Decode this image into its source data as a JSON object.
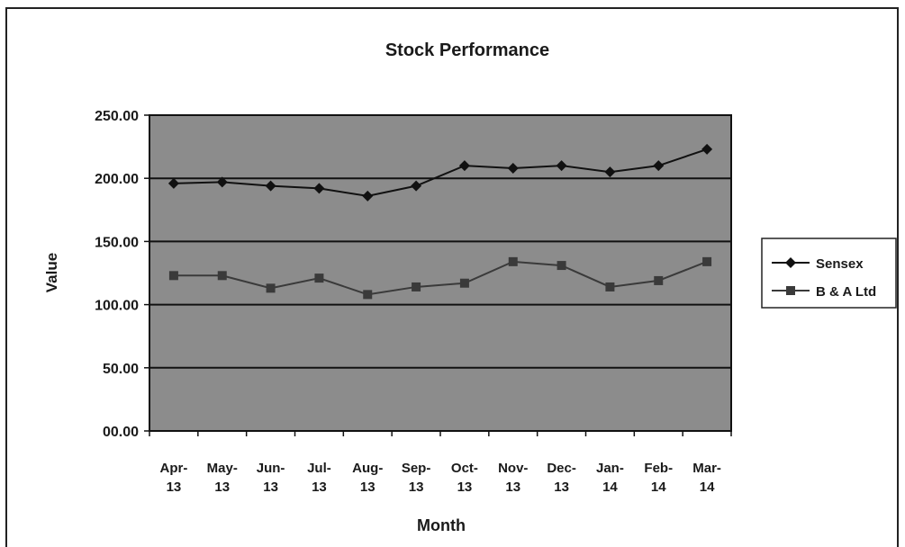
{
  "chart_data": {
    "type": "line",
    "title": "Stock Performance",
    "xlabel": "Month",
    "ylabel": "Value",
    "categories": [
      [
        "Apr-",
        "13"
      ],
      [
        "May-",
        "13"
      ],
      [
        "Jun-",
        "13"
      ],
      [
        "Jul-",
        "13"
      ],
      [
        "Aug-",
        "13"
      ],
      [
        "Sep-",
        "13"
      ],
      [
        "Oct-",
        "13"
      ],
      [
        "Nov-",
        "13"
      ],
      [
        "Dec-",
        "13"
      ],
      [
        "Jan-",
        "14"
      ],
      [
        "Feb-",
        "14"
      ],
      [
        "Mar-",
        "14"
      ]
    ],
    "yticks": [
      "00.00",
      "50.00",
      "100.00",
      "150.00",
      "200.00",
      "250.00"
    ],
    "ylim": [
      0,
      250
    ],
    "grid": true,
    "legend_position": "right",
    "plot_background": "#8c8c8c",
    "series": [
      {
        "name": "Sensex",
        "marker": "diamond",
        "color": "#111111",
        "values": [
          196,
          197,
          194,
          192,
          186,
          194,
          210,
          208,
          210,
          205,
          210,
          223
        ]
      },
      {
        "name": "B & A Ltd",
        "marker": "square",
        "color": "#3a3a3a",
        "values": [
          123,
          123,
          113,
          121,
          108,
          114,
          117,
          134,
          131,
          114,
          119,
          134
        ]
      }
    ]
  }
}
